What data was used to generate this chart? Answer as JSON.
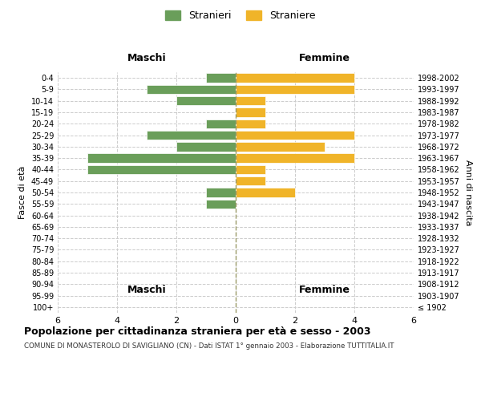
{
  "age_groups": [
    "100+",
    "95-99",
    "90-94",
    "85-89",
    "80-84",
    "75-79",
    "70-74",
    "65-69",
    "60-64",
    "55-59",
    "50-54",
    "45-49",
    "40-44",
    "35-39",
    "30-34",
    "25-29",
    "20-24",
    "15-19",
    "10-14",
    "5-9",
    "0-4"
  ],
  "birth_years": [
    "≤ 1902",
    "1903-1907",
    "1908-1912",
    "1913-1917",
    "1918-1922",
    "1923-1927",
    "1928-1932",
    "1933-1937",
    "1938-1942",
    "1943-1947",
    "1948-1952",
    "1953-1957",
    "1958-1962",
    "1963-1967",
    "1968-1972",
    "1973-1977",
    "1978-1982",
    "1983-1987",
    "1988-1992",
    "1993-1997",
    "1998-2002"
  ],
  "males": [
    0,
    0,
    0,
    0,
    0,
    0,
    0,
    0,
    0,
    1,
    1,
    0,
    5,
    5,
    2,
    3,
    1,
    0,
    2,
    3,
    1
  ],
  "females": [
    0,
    0,
    0,
    0,
    0,
    0,
    0,
    0,
    0,
    0,
    2,
    1,
    1,
    4,
    3,
    4,
    1,
    1,
    1,
    4,
    4
  ],
  "male_color": "#6a9e5a",
  "female_color": "#f0b429",
  "title": "Popolazione per cittadinanza straniera per età e sesso - 2003",
  "subtitle": "COMUNE DI MONASTEROLO DI SAVIGLIANO (CN) - Dati ISTAT 1° gennaio 2003 - Elaborazione TUTTITALIA.IT",
  "xlabel_left": "Maschi",
  "xlabel_right": "Femmine",
  "ylabel_left": "Fasce di età",
  "ylabel_right": "Anni di nascita",
  "legend_male": "Stranieri",
  "legend_female": "Straniere",
  "xlim": 6,
  "background_color": "#ffffff",
  "grid_color": "#cccccc"
}
